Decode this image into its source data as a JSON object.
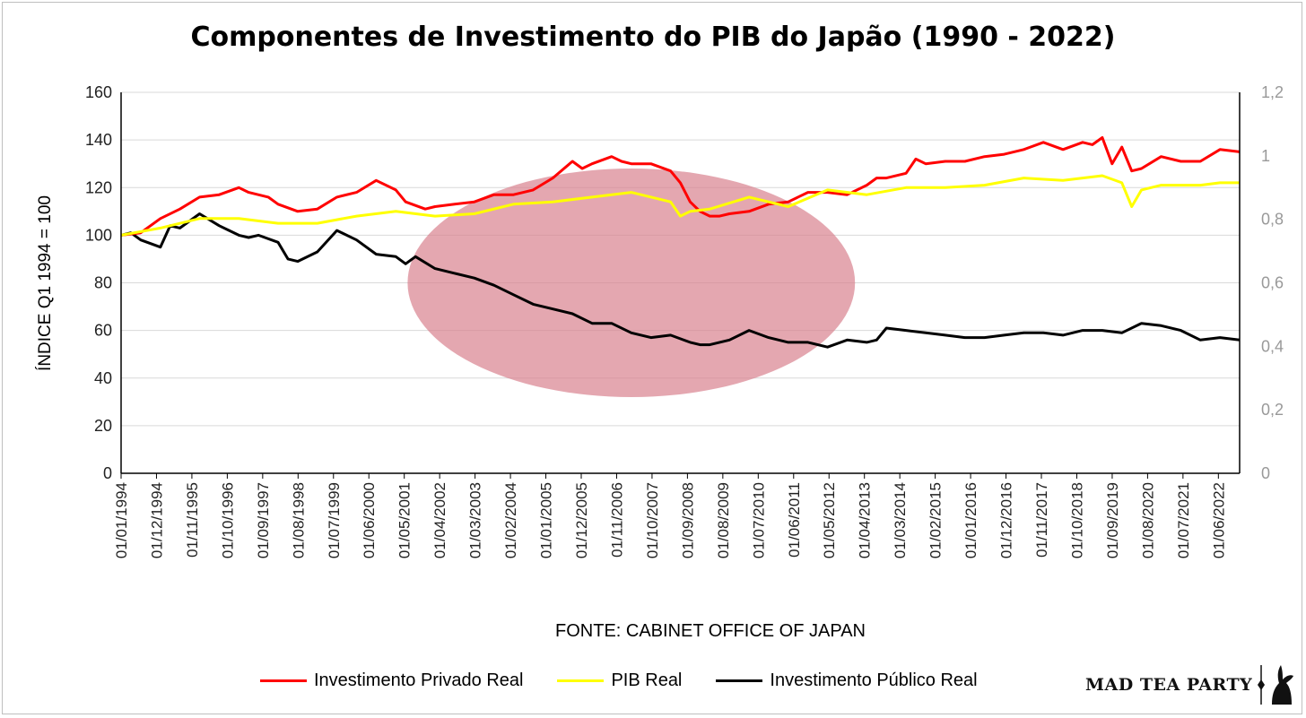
{
  "colors": {
    "private": "#ff0000",
    "gdp": "#ffff00",
    "public": "#000000",
    "highlight": "#d9828e",
    "grid": "#d9d9d9"
  },
  "chart_data": {
    "type": "line",
    "title": "Componentes de Investimento do PIB do Japão (1990 - 2022)",
    "ylabel": "ÍNDICE Q1 1994 = 100",
    "xlabel": "",
    "source": "FONTE: CABINET OFFICE OF JAPAN",
    "ylim": [
      0,
      160
    ],
    "y2lim": [
      0,
      1.2
    ],
    "yticks": [
      "0",
      "20",
      "40",
      "60",
      "80",
      "100",
      "120",
      "140",
      "160"
    ],
    "y2ticks": [
      "0",
      "0,2",
      "0,4",
      "0,6",
      "0,8",
      "1",
      "1,2"
    ],
    "x_tick_labels": [
      "01/01/1994",
      "01/12/1994",
      "01/11/1995",
      "01/10/1996",
      "01/09/1997",
      "01/08/1998",
      "01/07/1999",
      "01/06/2000",
      "01/05/2001",
      "01/04/2002",
      "01/03/2003",
      "01/02/2004",
      "01/01/2005",
      "01/12/2005",
      "01/11/2006",
      "01/10/2007",
      "01/09/2008",
      "01/08/2009",
      "01/07/2010",
      "01/06/2011",
      "01/05/2012",
      "01/04/2013",
      "01/03/2014",
      "01/02/2015",
      "01/01/2016",
      "01/12/2016",
      "01/11/2017",
      "01/10/2018",
      "01/09/2019",
      "01/08/2020",
      "01/07/2021",
      "01/06/2022"
    ],
    "x_range": [
      1994.0,
      2022.5
    ],
    "highlight_region": {
      "x_center": 2007.0,
      "x_halfwidth": 5.7,
      "y_center": 80,
      "y_halfwidth": 48
    },
    "series": [
      {
        "name": "Investimento Privado Real",
        "color": "#ff0000",
        "x": [
          1994.0,
          1994.5,
          1995.0,
          1995.5,
          1996.0,
          1996.5,
          1997.0,
          1997.25,
          1997.75,
          1998.0,
          1998.5,
          1999.0,
          1999.5,
          2000.0,
          2000.5,
          2001.0,
          2001.25,
          2001.75,
          2002.0,
          2002.5,
          2003.0,
          2003.5,
          2004.0,
          2004.5,
          2005.0,
          2005.5,
          2005.75,
          2006.0,
          2006.5,
          2006.75,
          2007.0,
          2007.5,
          2008.0,
          2008.25,
          2008.5,
          2008.75,
          2009.0,
          2009.25,
          2009.5,
          2010.0,
          2010.5,
          2011.0,
          2011.5,
          2012.0,
          2012.5,
          2013.0,
          2013.25,
          2013.5,
          2014.0,
          2014.25,
          2014.5,
          2015.0,
          2015.5,
          2016.0,
          2016.5,
          2017.0,
          2017.5,
          2018.0,
          2018.5,
          2018.75,
          2019.0,
          2019.25,
          2019.5,
          2019.75,
          2020.0,
          2020.5,
          2021.0,
          2021.5,
          2022.0,
          2022.5
        ],
        "values": [
          100,
          101,
          107,
          111,
          116,
          117,
          120,
          118,
          116,
          113,
          110,
          111,
          116,
          118,
          123,
          119,
          114,
          111,
          112,
          113,
          114,
          117,
          117,
          119,
          124,
          131,
          128,
          130,
          133,
          131,
          130,
          130,
          127,
          122,
          114,
          110,
          108,
          108,
          109,
          110,
          113,
          114,
          118,
          118,
          117,
          121,
          124,
          124,
          126,
          132,
          130,
          131,
          131,
          133,
          134,
          136,
          139,
          136,
          139,
          138,
          141,
          130,
          137,
          127,
          128,
          133,
          131,
          131,
          136,
          135
        ]
      },
      {
        "name": "PIB Real",
        "color": "#ffff00",
        "x": [
          1994.0,
          1995.0,
          1996.0,
          1997.0,
          1998.0,
          1999.0,
          2000.0,
          2001.0,
          2002.0,
          2003.0,
          2004.0,
          2005.0,
          2006.0,
          2007.0,
          2008.0,
          2008.25,
          2008.5,
          2009.0,
          2010.0,
          2011.0,
          2012.0,
          2013.0,
          2014.0,
          2015.0,
          2016.0,
          2017.0,
          2018.0,
          2019.0,
          2019.5,
          2019.75,
          2020.0,
          2020.5,
          2021.0,
          2021.5,
          2022.0,
          2022.5
        ],
        "values": [
          100,
          103,
          107,
          107,
          105,
          105,
          108,
          110,
          108,
          109,
          113,
          114,
          116,
          118,
          114,
          108,
          110,
          111,
          116,
          112,
          119,
          117,
          120,
          120,
          121,
          124,
          123,
          125,
          122,
          112,
          119,
          121,
          121,
          121,
          122,
          122
        ]
      },
      {
        "name": "Investimento Público Real",
        "color": "#000000",
        "x": [
          1994.0,
          1994.25,
          1994.5,
          1995.0,
          1995.25,
          1995.5,
          1996.0,
          1996.5,
          1997.0,
          1997.25,
          1997.5,
          1998.0,
          1998.25,
          1998.5,
          1999.0,
          1999.5,
          2000.0,
          2000.5,
          2001.0,
          2001.25,
          2001.5,
          2002.0,
          2002.5,
          2003.0,
          2003.5,
          2004.0,
          2004.5,
          2005.0,
          2005.5,
          2006.0,
          2006.5,
          2007.0,
          2007.5,
          2008.0,
          2008.5,
          2008.75,
          2009.0,
          2009.5,
          2010.0,
          2010.5,
          2011.0,
          2011.5,
          2012.0,
          2012.5,
          2013.0,
          2013.25,
          2013.5,
          2014.0,
          2014.5,
          2015.0,
          2015.5,
          2016.0,
          2016.5,
          2017.0,
          2017.5,
          2018.0,
          2018.5,
          2019.0,
          2019.5,
          2020.0,
          2020.5,
          2021.0,
          2021.5,
          2022.0,
          2022.5
        ],
        "values": [
          100,
          101,
          98,
          95,
          104,
          103,
          109,
          104,
          100,
          99,
          100,
          97,
          90,
          89,
          93,
          102,
          98,
          92,
          91,
          88,
          91,
          86,
          84,
          82,
          79,
          75,
          71,
          69,
          67,
          63,
          63,
          59,
          57,
          58,
          55,
          54,
          54,
          56,
          60,
          57,
          55,
          55,
          53,
          56,
          55,
          56,
          61,
          60,
          59,
          58,
          57,
          57,
          58,
          59,
          59,
          58,
          60,
          60,
          59,
          63,
          62,
          60,
          56,
          57,
          56
        ]
      }
    ]
  },
  "legend": {
    "items": [
      "Investimento Privado Real",
      "PIB Real",
      "Investimento Público Real"
    ]
  },
  "brand": {
    "name": "MAD TEA PARTY"
  }
}
